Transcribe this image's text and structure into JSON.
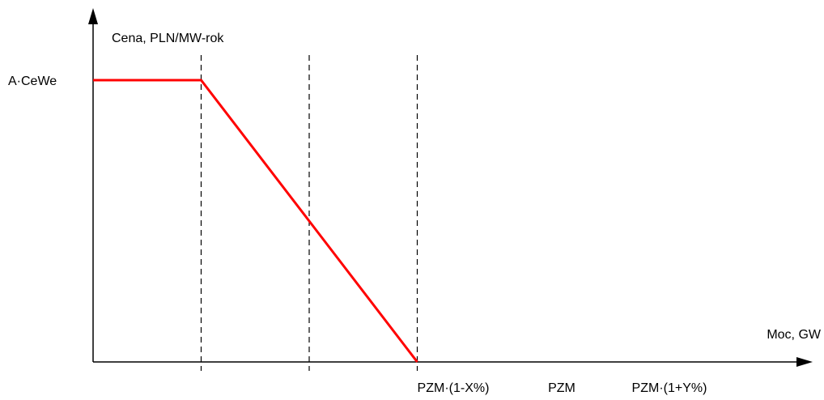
{
  "chart_data": {
    "type": "line",
    "title": "",
    "ylabel": "Cena, PLN/MW-rok",
    "xlabel": "Moc, GW",
    "y_tick_label": "A·CeWe",
    "x_tick_labels": [
      "PZM·(1-X%)",
      "PZM",
      "PZM·(1+Y%)"
    ],
    "series": [
      {
        "color": "#ff0000",
        "points": [
          {
            "x": 0,
            "y": 1
          },
          {
            "x": 1,
            "y": 1
          },
          {
            "x": 2,
            "y": 0.5
          },
          {
            "x": 3,
            "y": 0
          }
        ]
      }
    ],
    "reference_lines_x": [
      1,
      2,
      3
    ],
    "xlim": [
      0,
      3.07
    ],
    "ylim": [
      0,
      1
    ],
    "grid": false
  }
}
